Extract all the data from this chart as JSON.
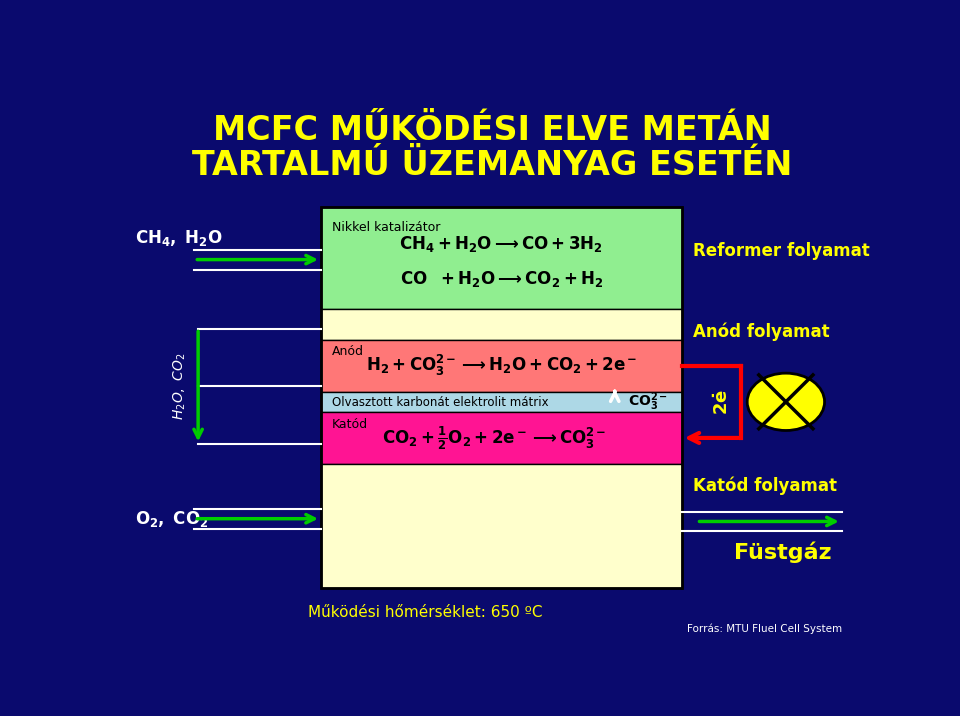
{
  "title_line1": "MCFC MŰKÖDÉSI ELVE METÁN",
  "title_line2": "TARTALMÚ ÜZEMANYAG ESETÉN",
  "title_color": "#FFFF00",
  "bg_color": "#0a0a6e",
  "green_color": "#90EE90",
  "yellow_color": "#FFFFCC",
  "red_color": "#FF7777",
  "blue_color": "#ADD8E6",
  "pink_color": "#FF1493",
  "reformer_text": "Reformer folyamat",
  "anod_text": "Anód folyamat",
  "katod_text": "Katód folyamat",
  "fustgaz_text": "Füstgáz",
  "operating_text": "Működési hőmérséklet: 650 ºC",
  "source_text": "Forrás: MTU Fluel Cell System",
  "yellow_label_color": "#FFFF00",
  "white_color": "#FFFFFF",
  "green_arrow_color": "#00CC00",
  "red_arrow_color": "#FF0000"
}
